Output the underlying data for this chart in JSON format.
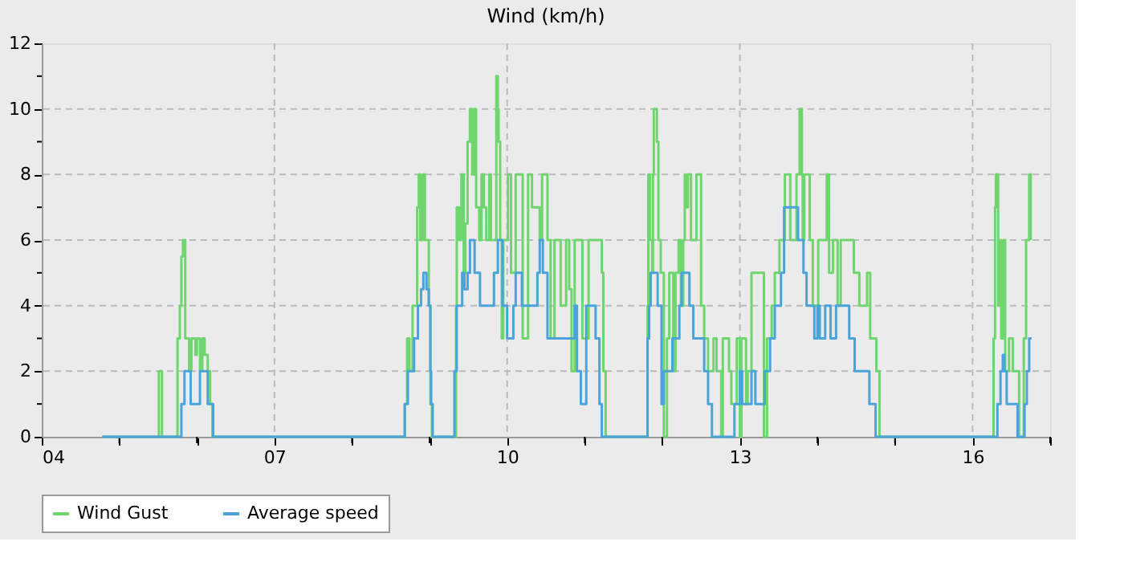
{
  "chart_data": {
    "type": "step",
    "title": "Wind (km/h)",
    "legend": "bottom",
    "grid": true,
    "xlim": [
      4,
      17
    ],
    "ylim": [
      0,
      12
    ],
    "xticks": [
      {
        "value": 4,
        "label": "04"
      },
      {
        "value": 5,
        "label": null
      },
      {
        "value": 6,
        "label": null
      },
      {
        "value": 7,
        "label": "07"
      },
      {
        "value": 8,
        "label": null
      },
      {
        "value": 9,
        "label": null
      },
      {
        "value": 10,
        "label": "10"
      },
      {
        "value": 11,
        "label": null
      },
      {
        "value": 12,
        "label": null
      },
      {
        "value": 13,
        "label": "13"
      },
      {
        "value": 14,
        "label": null
      },
      {
        "value": 15,
        "label": null
      },
      {
        "value": 16,
        "label": "16"
      },
      {
        "value": 17,
        "label": null
      }
    ],
    "yticks": [
      0,
      {
        "value": 1,
        "label": null
      },
      2,
      {
        "value": 3,
        "label": null
      },
      4,
      {
        "value": 5,
        "label": null
      },
      6,
      {
        "value": 7,
        "label": null
      },
      8,
      {
        "value": 9,
        "label": null
      },
      10,
      {
        "value": 11,
        "label": null
      },
      12
    ],
    "series": [
      {
        "name": "Wind Gust",
        "color": "#6fd66f",
        "x": [
          4.78,
          5.51,
          5.55,
          5.75,
          5.78,
          5.8,
          5.82,
          5.85,
          5.9,
          5.93,
          5.98,
          6.0,
          6.04,
          6.07,
          6.1,
          6.14,
          6.17,
          6.2,
          8.68,
          8.71,
          8.74,
          8.78,
          8.84,
          8.86,
          8.88,
          8.91,
          8.94,
          8.99,
          9.01,
          9.03,
          9.34,
          9.35,
          9.38,
          9.41,
          9.44,
          9.46,
          9.49,
          9.52,
          9.55,
          9.58,
          9.6,
          9.64,
          9.67,
          9.7,
          9.73,
          9.77,
          9.79,
          9.86,
          9.88,
          9.89,
          9.91,
          9.93,
          9.95,
          10.01,
          10.05,
          10.11,
          10.2,
          10.27,
          10.32,
          10.42,
          10.45,
          10.52,
          10.56,
          10.61,
          10.69,
          10.76,
          10.8,
          10.83,
          10.87,
          10.97,
          11.05,
          11.22,
          11.24,
          11.27,
          11.81,
          11.82,
          11.84,
          11.87,
          11.88,
          11.89,
          11.93,
          11.95,
          11.98,
          12.02,
          12.06,
          12.09,
          12.14,
          12.17,
          12.21,
          12.24,
          12.27,
          12.29,
          12.3,
          12.33,
          12.37,
          12.44,
          12.5,
          12.54,
          12.59,
          12.66,
          12.7,
          12.76,
          12.78,
          12.86,
          12.89,
          12.96,
          13.0,
          13.02,
          13.08,
          13.1,
          13.15,
          13.31,
          13.35,
          13.41,
          13.45,
          13.51,
          13.58,
          13.65,
          13.73,
          13.77,
          13.8,
          13.81,
          13.83,
          13.9,
          13.94,
          14.01,
          14.12,
          14.15,
          14.2,
          14.26,
          14.3,
          14.47,
          14.54,
          14.64,
          14.68,
          14.76,
          14.8,
          16.27,
          16.29,
          16.3,
          16.33,
          16.35,
          16.37,
          16.4,
          16.42,
          16.47,
          16.52,
          16.6,
          16.66,
          16.69,
          16.73,
          16.75
        ],
        "values": [
          0,
          2,
          0,
          3,
          4,
          5.5,
          6,
          3,
          2,
          3,
          2.5,
          3,
          2,
          3,
          2.5,
          2,
          1,
          0,
          1,
          3,
          2,
          4,
          7,
          8,
          6,
          8,
          6,
          4,
          1,
          0,
          4,
          7,
          6,
          8,
          5,
          6.5,
          9,
          10,
          8,
          10,
          7,
          6,
          8,
          7,
          6,
          8,
          6,
          11,
          10,
          9,
          6,
          3,
          6,
          8,
          5,
          8,
          3,
          8,
          7,
          6,
          8,
          6,
          3,
          6,
          4,
          6,
          4.5,
          2,
          6,
          3,
          6,
          5,
          2,
          0,
          4,
          8,
          6,
          5,
          8,
          10,
          9,
          6,
          5,
          0,
          3,
          5,
          2,
          5,
          6,
          4,
          6,
          8,
          7,
          8,
          6,
          8,
          4,
          3,
          2,
          3,
          2,
          0,
          3,
          2,
          1,
          3,
          0,
          3,
          1,
          2,
          5,
          0,
          3,
          4,
          5,
          6,
          8,
          6,
          8,
          10,
          8,
          6,
          8,
          6,
          4,
          6,
          8,
          5,
          6,
          4,
          6,
          5,
          4,
          5,
          3,
          2,
          0,
          3,
          7,
          8,
          4,
          6,
          3,
          6,
          2,
          3,
          2,
          0,
          3,
          6,
          8,
          6
        ]
      },
      {
        "name": "Average speed",
        "color": "#4aa3d9",
        "x": [
          4.78,
          5.8,
          5.84,
          5.92,
          6.04,
          6.14,
          6.21,
          8.68,
          8.72,
          8.8,
          8.85,
          8.89,
          8.92,
          8.96,
          8.99,
          9.01,
          9.02,
          9.04,
          9.32,
          9.35,
          9.42,
          9.45,
          9.49,
          9.52,
          9.58,
          9.65,
          9.68,
          9.83,
          9.88,
          9.94,
          10.0,
          10.08,
          10.11,
          10.19,
          10.39,
          10.42,
          10.46,
          10.52,
          10.87,
          10.9,
          10.95,
          11.02,
          11.14,
          11.19,
          11.22,
          11.27,
          11.81,
          11.83,
          11.85,
          11.94,
          11.99,
          12.02,
          12.13,
          12.22,
          12.25,
          12.35,
          12.4,
          12.54,
          12.59,
          12.64,
          12.93,
          13.0,
          13.03,
          13.15,
          13.2,
          13.32,
          13.39,
          13.45,
          13.53,
          13.57,
          13.75,
          13.8,
          13.82,
          13.86,
          13.96,
          14.0,
          14.03,
          14.1,
          14.17,
          14.24,
          14.41,
          14.48,
          14.67,
          14.75,
          14.8,
          16.32,
          16.36,
          16.39,
          16.41,
          16.44,
          16.58,
          16.67,
          16.7,
          16.73,
          16.76
        ],
        "values": [
          0,
          1,
          2,
          1,
          2,
          1,
          0,
          1,
          2,
          3,
          4,
          4.5,
          5,
          4.5,
          4,
          2,
          1,
          0,
          2,
          4,
          5,
          4.5,
          5,
          6,
          5,
          4,
          4,
          5,
          6,
          4,
          3,
          4,
          5,
          4,
          5,
          6,
          5,
          3,
          4,
          2,
          1,
          4,
          3,
          1,
          0,
          0,
          3,
          4,
          5,
          4,
          1,
          2,
          3,
          4,
          5,
          4,
          3,
          2,
          1,
          0,
          1,
          2,
          1,
          2,
          1,
          2,
          3,
          4,
          5,
          7,
          6,
          6,
          5,
          4,
          3,
          4,
          3,
          4,
          3,
          4,
          3,
          2,
          1,
          0,
          0,
          1,
          2,
          2.5,
          2,
          1,
          0,
          1,
          2,
          3,
          3
        ]
      }
    ]
  }
}
